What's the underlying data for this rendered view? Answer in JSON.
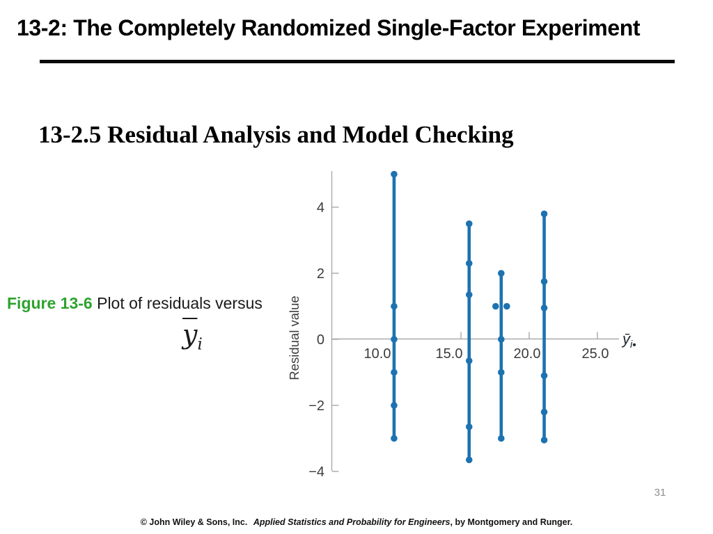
{
  "slide": {
    "title": "13-2: The Completely Randomized Single-Factor Experiment",
    "section_heading": "13-2.5 Residual Analysis and Model Checking",
    "caption": {
      "figure_label": "Figure 13-6",
      "text": "Plot of residuals versus",
      "math_base": "y",
      "math_sub": "i"
    },
    "page_number": "31",
    "footer": {
      "copyright": "© John Wiley & Sons, Inc.",
      "book_title": "Applied Statistics and Probability for Engineers",
      "suffix": ", by Montgomery and Runger."
    },
    "colors": {
      "figure_label_green": "#2ea32e",
      "plot_blue": "#1d72b0",
      "axis_gray": "#a9a9a9",
      "tick_text_gray": "#3c3c3c",
      "page_number_gray": "#8c8c8c"
    }
  },
  "chart_data": {
    "type": "scatter",
    "title": "",
    "description": "Residuals plotted against treatment averages for four factor levels; each vertical blue line spans the residuals of one treatment, dots mark individual residual values",
    "xlabel": "ȳᵢ•",
    "xlabel_parts": {
      "base": "ȳ",
      "sub": "i",
      "dot": "•"
    },
    "ylabel": "Residual value",
    "x_ticks": [
      10.0,
      15.0,
      20.0,
      25.0
    ],
    "x_tick_labels": [
      "10.0",
      "15.0",
      "20.0",
      "25.0"
    ],
    "y_ticks": [
      -4,
      -2,
      0,
      2,
      4
    ],
    "y_tick_labels": [
      "−4",
      "−2",
      "0",
      "2",
      "4"
    ],
    "xlim": [
      5.5,
      26.6
    ],
    "ylim": [
      -4.0,
      5.1
    ],
    "grid": false,
    "legend": false,
    "marker": "circle",
    "series": [
      {
        "name": "treatment mean ≈ 10.1",
        "x": 10.1,
        "residuals": [
          5.0,
          1.0,
          0.0,
          -1.0,
          -2.0,
          -3.0
        ]
      },
      {
        "name": "treatment mean ≈ 15.6",
        "x": 15.6,
        "residuals": [
          3.5,
          2.3,
          1.35,
          -0.65,
          -2.65,
          -3.65
        ]
      },
      {
        "name": "treatment mean ≈ 18.0",
        "x": 17.95,
        "residuals": [
          2.0,
          1.0,
          1.0,
          0.0,
          -1.0,
          -3.0
        ]
      },
      {
        "name": "treatment mean ≈ 21.1",
        "x": 21.1,
        "residuals": [
          3.8,
          1.75,
          0.95,
          -1.1,
          -2.2,
          -3.05
        ]
      }
    ]
  }
}
